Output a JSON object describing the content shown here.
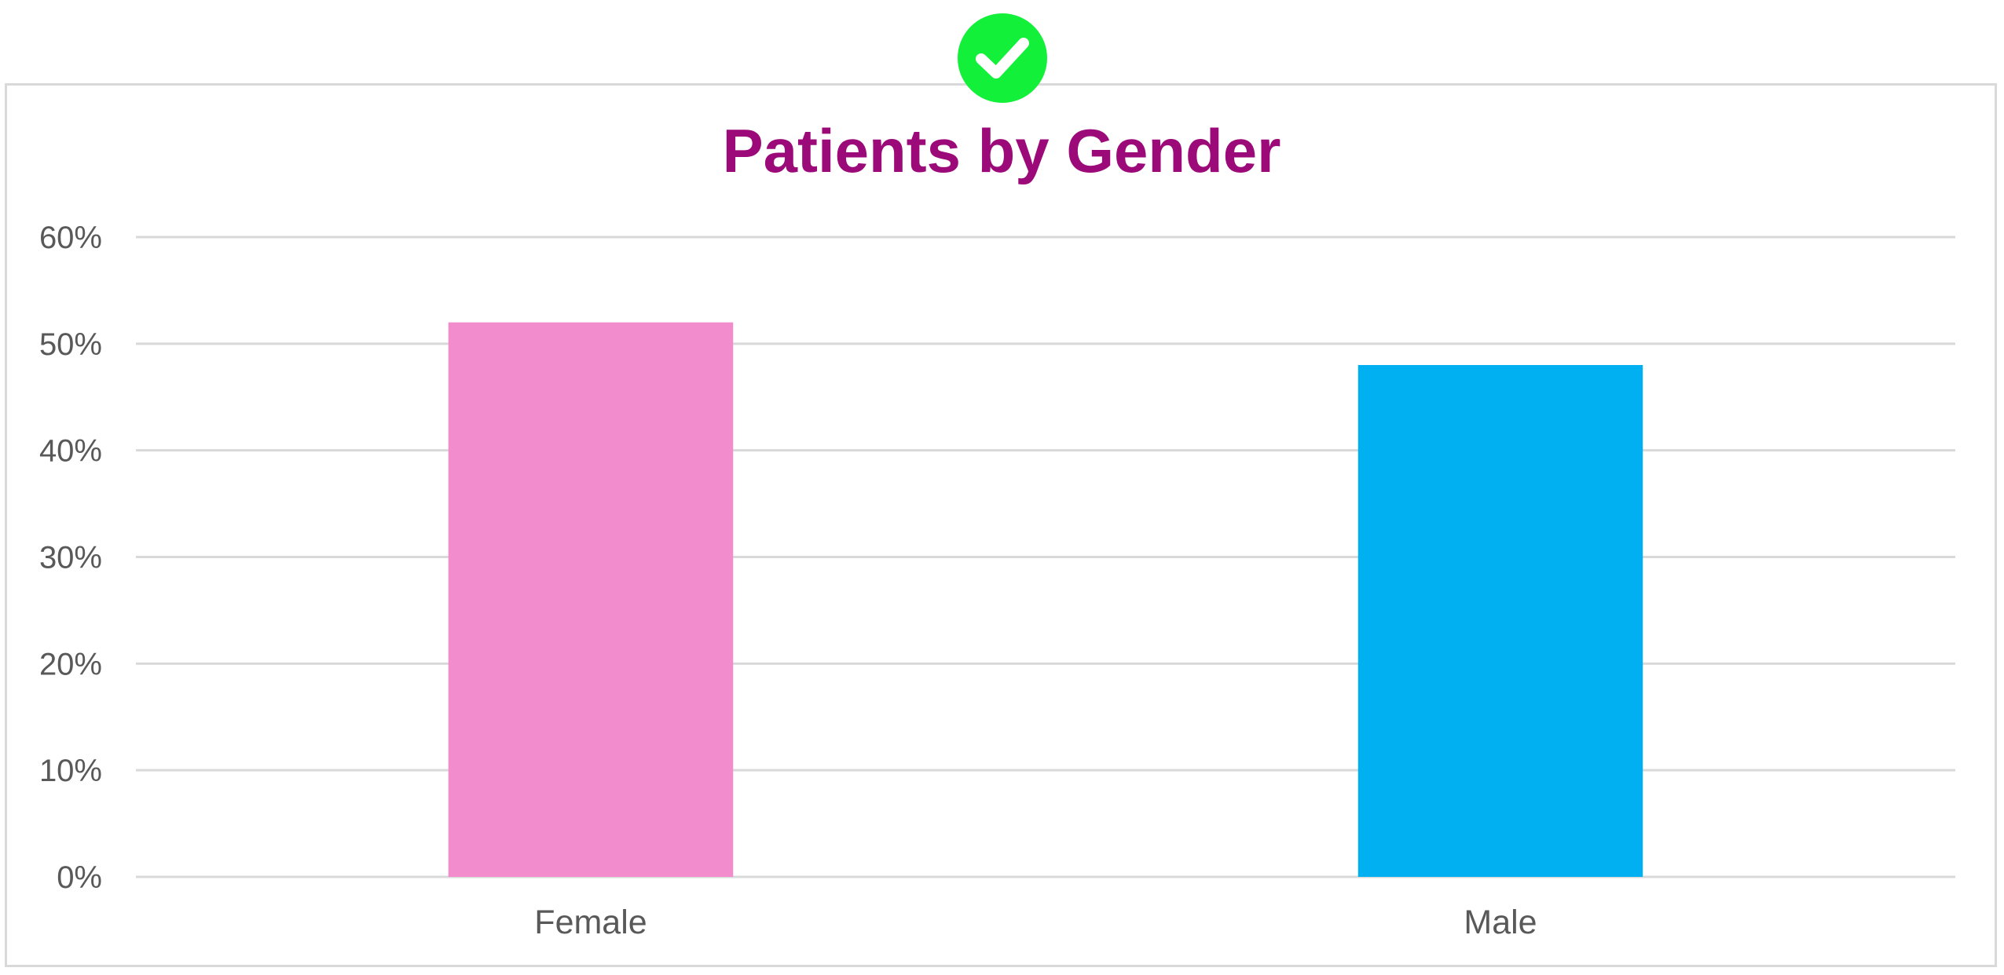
{
  "badge": {
    "icon": "check-circle-icon",
    "color": "#12f03a"
  },
  "chart_data": {
    "type": "bar",
    "title": "Patients by Gender",
    "categories": [
      "Female",
      "Male"
    ],
    "values": [
      0.52,
      0.48
    ],
    "bar_colors": [
      "#f28ccc",
      "#00b0f0"
    ],
    "ylim": [
      0,
      0.6
    ],
    "yticks": [
      {
        "value": 0.6,
        "label": "60%"
      },
      {
        "value": 0.5,
        "label": "50%"
      },
      {
        "value": 0.4,
        "label": "40%"
      },
      {
        "value": 0.3,
        "label": "30%"
      },
      {
        "value": 0.2,
        "label": "20%"
      },
      {
        "value": 0.1,
        "label": "10%"
      },
      {
        "value": 0.0,
        "label": "0%"
      }
    ],
    "grid": true,
    "legend": "none",
    "colors": {
      "title": "#9b0a78",
      "grid": "#d9d9d9",
      "text": "#595959"
    }
  }
}
